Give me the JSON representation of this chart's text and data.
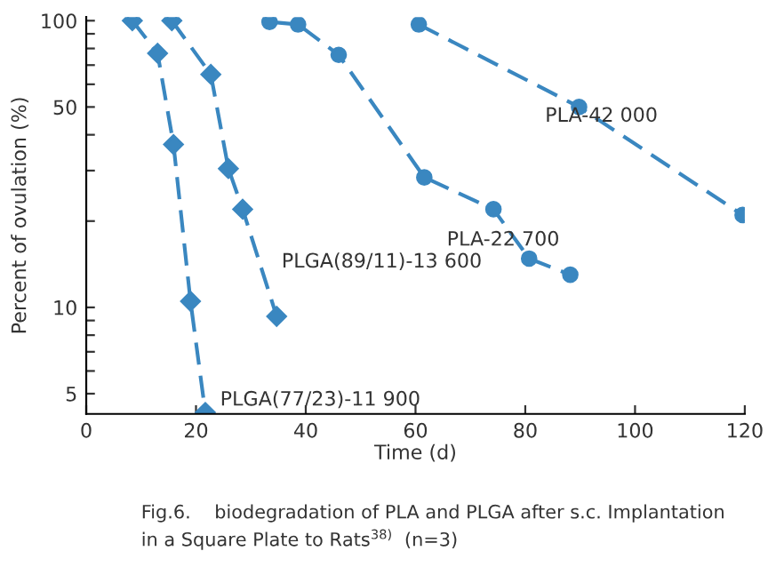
{
  "chart_data": {
    "type": "line",
    "xlabel": "Time (d)",
    "ylabel": "Percent of ovulation (%)",
    "log": true,
    "line_style": "dashed",
    "xlim": [
      0,
      120
    ],
    "xticks": [
      0,
      20,
      40,
      60,
      80,
      100,
      120
    ],
    "ylim": [
      4.25,
      103
    ],
    "yticks": [
      5,
      {
        "value": 6,
        "label": null
      },
      {
        "value": 7,
        "label": null
      },
      {
        "value": 8,
        "label": null
      },
      {
        "value": 9,
        "label": null
      },
      10,
      {
        "value": 20,
        "label": null
      },
      {
        "value": 30,
        "label": null
      },
      {
        "value": 40,
        "label": null
      },
      50,
      {
        "value": 60,
        "label": null
      },
      {
        "value": 70,
        "label": null
      },
      {
        "value": 80,
        "label": null
      },
      {
        "value": 90,
        "label": null
      },
      100
    ],
    "series": [
      {
        "name": "PLGA(77/23)-11 900",
        "color": "#3a87c0",
        "marker": "diamond",
        "x": [
          8.4,
          13,
          15.9,
          19,
          21.7
        ],
        "values": [
          100,
          77,
          37,
          10.5,
          4.3
        ]
      },
      {
        "name": "PLGA(89/11)-13 600",
        "color": "#3a87c0",
        "marker": "diamond",
        "x": [
          15.6,
          22.7,
          25.9,
          28.5,
          34.7
        ],
        "values": [
          100,
          65,
          30.5,
          22,
          9.3
        ]
      },
      {
        "name": "PLA-22 700",
        "color": "#3a87c0",
        "marker": "circle",
        "x": [
          33.4,
          38.6,
          46,
          61.6,
          74.2,
          80.7,
          88.2
        ],
        "values": [
          99,
          97,
          76,
          28.4,
          22,
          14.8,
          13
        ]
      },
      {
        "name": "PLA-42 000",
        "color": "#3a87c0",
        "marker": "circle",
        "x": [
          60.6,
          89.8,
          119.6
        ],
        "values": [
          97,
          50,
          21
        ]
      }
    ],
    "annotations": [
      "Fig.6.    biodegradation of PLA and PLGA after s.c. Implantation\nin a Square Plate to Rats$^{38)}$  (n=3)"
    ]
  }
}
